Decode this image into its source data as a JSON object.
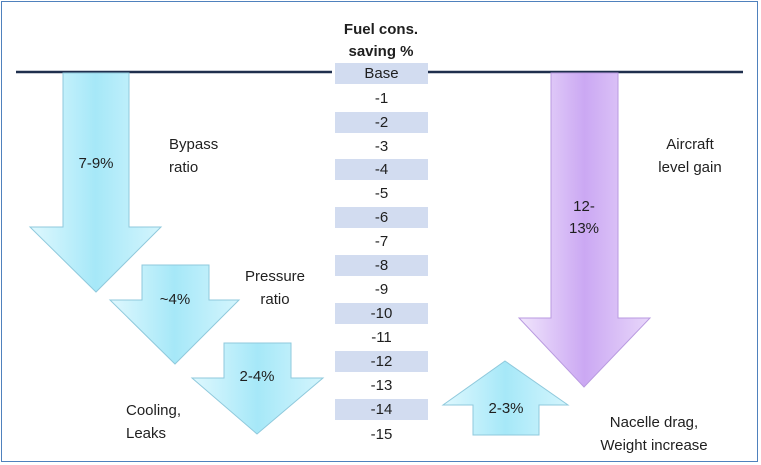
{
  "header": {
    "line1": "Fuel cons.",
    "line2": "saving %"
  },
  "scale": [
    "Base",
    "-1",
    "-2",
    "-3",
    "-4",
    "-5",
    "-6",
    "-7",
    "-8",
    "-9",
    "-10",
    "-11",
    "-12",
    "-13",
    "-14",
    "-15"
  ],
  "arrows": [
    {
      "id": "bypass",
      "value_label": "7-9%",
      "caption_lines": [
        "Bypass",
        "ratio"
      ],
      "direction": "down"
    },
    {
      "id": "pressure",
      "value_label": "~4%",
      "caption_lines": [
        "Pressure",
        "ratio"
      ],
      "direction": "down"
    },
    {
      "id": "cooling",
      "value_label": "2-4%",
      "caption_lines": [
        "Cooling,",
        "Leaks"
      ],
      "direction": "down"
    },
    {
      "id": "aircraft",
      "value_label_lines": [
        "12-",
        "13%"
      ],
      "caption_lines": [
        "Aircraft",
        "level gain"
      ],
      "direction": "down"
    },
    {
      "id": "nacelle",
      "value_label": "2-3%",
      "caption_lines": [
        "Nacelle drag,",
        "Weight increase"
      ],
      "direction": "up"
    }
  ],
  "colors": {
    "blue_arrow": "#bdf0fc",
    "purple_arrow": "#e2cdf8",
    "row_shade": "#d2dcf0",
    "baseline": "#1f2f4d",
    "frame": "#4f81bd"
  }
}
